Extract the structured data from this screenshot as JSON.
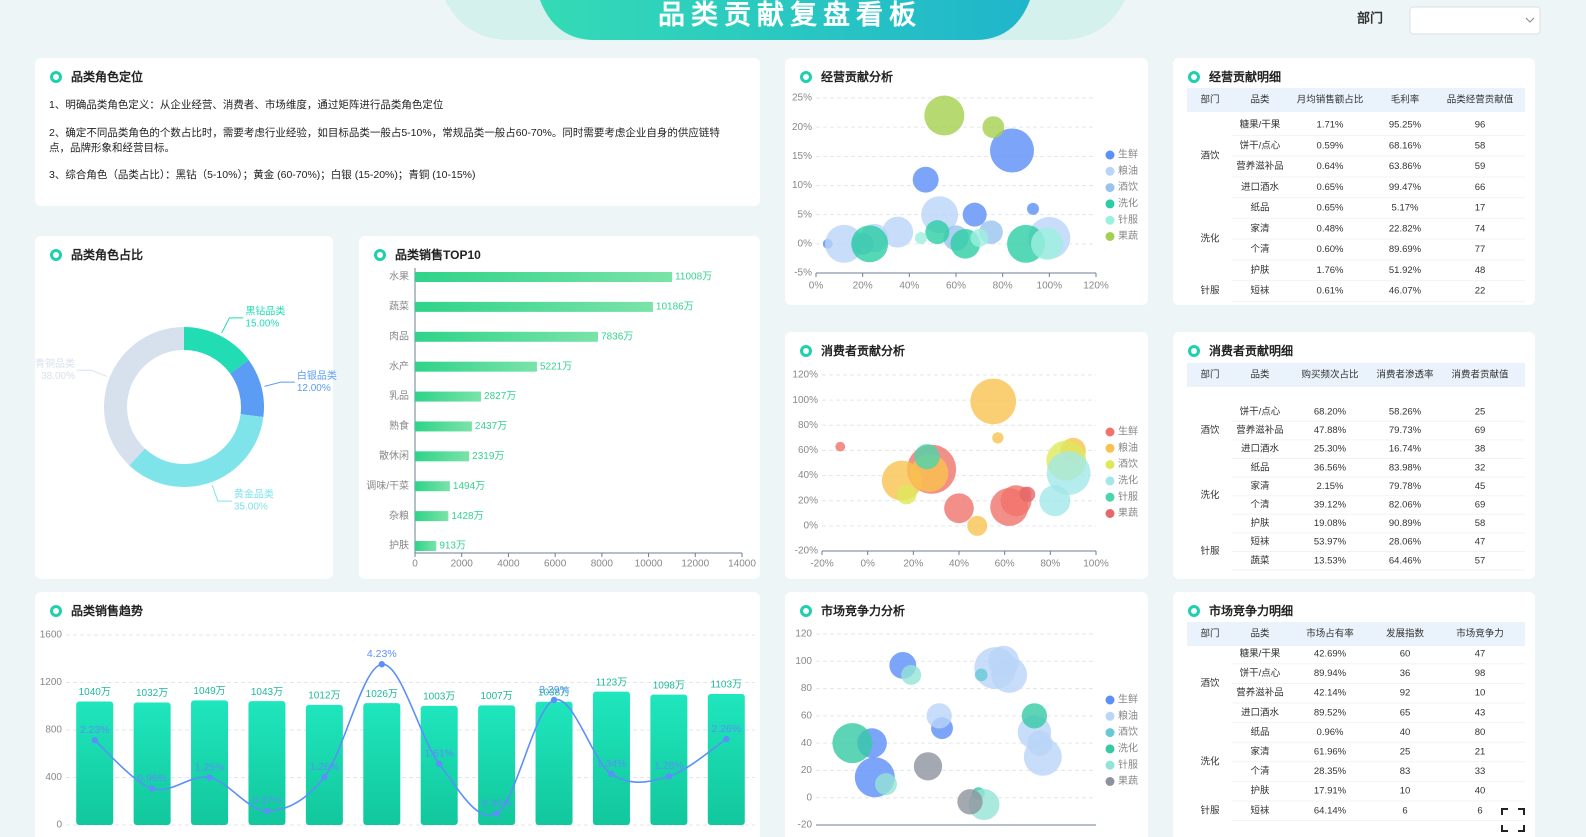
{
  "header": {
    "title": "品类贡献复盘看板",
    "filter_label": "部门"
  },
  "intro": {
    "title": "品类角色定位",
    "lines": [
      "1、明确品类角色定义：从企业经营、消费者、市场维度，通过矩阵进行品类角色定位",
      "2、确定不同品类角色的个数占比时，需要考虑行业经验，如目标品类一般占5-10%，常规品类一般占60-70%。同时需要考虑企业自身的供应链特点，品牌形象和经营目标。",
      "3、综合角色（品类占比）：黑钻（5-10%）；黄金 (60-70%)；白银 (15-20%)；青铜 (10-15%)"
    ]
  },
  "chart_data": [
    {
      "type": "pie",
      "title": "品类角色占比",
      "categories": [
        "黑钻品类",
        "白银品类",
        "黄金品类",
        "青铜品类"
      ],
      "values": [
        15,
        12,
        35,
        38
      ],
      "value_labels": [
        "15.00%",
        "12.00%",
        "35.00%",
        "38.00%"
      ],
      "colors": [
        "#22dcb4",
        "#5b9cf5",
        "#7fe3ea",
        "#d7e1ee"
      ]
    },
    {
      "type": "hbar",
      "title": "品类销售TOP10",
      "categories": [
        "水果",
        "蔬菜",
        "肉品",
        "水产",
        "乳品",
        "熟食",
        "散休闲",
        "调味/干菜",
        "杂粮",
        "护肤"
      ],
      "values": [
        11008,
        10186,
        7836,
        5221,
        2827,
        2437,
        2319,
        1494,
        1428,
        913
      ],
      "value_labels": [
        "11008万",
        "10186万",
        "7836万",
        "5221万",
        "2827万",
        "2437万",
        "2319万",
        "1494万",
        "1428万",
        "913万"
      ],
      "color": "#35d38e",
      "xlim": [
        0,
        14000
      ],
      "xticks": [
        0,
        2000,
        4000,
        6000,
        8000,
        10000,
        12000,
        14000
      ]
    },
    {
      "type": "combo",
      "title": "品类销售趋势",
      "ylim": [
        0,
        1600
      ],
      "yticks": [
        0,
        400,
        800,
        1200,
        1600
      ],
      "y2lim": [
        0,
        5
      ],
      "grid": true,
      "series": [
        {
          "kind": "bar",
          "color": "#19d8b2",
          "values": [
            1040,
            1032,
            1049,
            1043,
            1012,
            1026,
            1003,
            1007,
            1038,
            1123,
            1098,
            1103
          ],
          "value_labels": [
            "1040万",
            "1032万",
            "1049万",
            "1043万",
            "1012万",
            "1026万",
            "1003万",
            "1007万",
            "1038万",
            "1123万",
            "1098万",
            "1103万"
          ]
        },
        {
          "kind": "line",
          "axis": "y2",
          "color": "#5b8ff9",
          "values": [
            2.23,
            0.96,
            1.25,
            0.37,
            1.26,
            4.23,
            1.61,
            0.3,
            3.29,
            1.34,
            1.28,
            2.26
          ],
          "value_labels": [
            "2.23%",
            "0.96%",
            "1.25%",
            "0.37%",
            "1.26%",
            "4.23%",
            "1.61%",
            "0.30%",
            "3.29%",
            "1.34%",
            "1.28%",
            "2.26%"
          ]
        }
      ]
    },
    {
      "type": "bubble",
      "title": "经营贡献分析",
      "grid": true,
      "xlim": [
        0,
        120
      ],
      "xticks": [
        {
          "value": 0,
          "label": "0%"
        },
        {
          "value": 20,
          "label": "20%"
        },
        {
          "value": 40,
          "label": "40%"
        },
        {
          "value": 60,
          "label": "60%"
        },
        {
          "value": 80,
          "label": "80%"
        },
        {
          "value": 100,
          "label": "100%"
        },
        {
          "value": 120,
          "label": "120%"
        }
      ],
      "ylim": [
        -5,
        25
      ],
      "yticks": [
        {
          "value": -5,
          "label": "-5%"
        },
        {
          "value": 0,
          "label": "0%"
        },
        {
          "value": 5,
          "label": "5%"
        },
        {
          "value": 10,
          "label": "10%"
        },
        {
          "value": 15,
          "label": "15%"
        },
        {
          "value": 20,
          "label": "20%"
        },
        {
          "value": 25,
          "label": "25%"
        }
      ],
      "series": [
        {
          "name": "生鲜",
          "color": "#5b8ff9",
          "x": [
            84,
            47,
            68,
            93,
            5
          ],
          "y": [
            16,
            11,
            5,
            6,
            0
          ],
          "size": [
            121,
            42,
            36,
            9,
            6
          ]
        },
        {
          "name": "粮油",
          "color": "#b9d5f7",
          "x": [
            12,
            35,
            53,
            100,
            25
          ],
          "y": [
            0,
            2,
            5,
            1,
            1
          ],
          "size": [
            90,
            60,
            85,
            110,
            50
          ]
        },
        {
          "name": "酒饮",
          "color": "#98c3ee",
          "x": [
            60,
            20,
            75
          ],
          "y": [
            1,
            0,
            2
          ],
          "size": [
            40,
            30,
            35
          ]
        },
        {
          "name": "洗化",
          "color": "#2ccda4",
          "x": [
            23,
            52,
            90,
            64
          ],
          "y": [
            0,
            2,
            0,
            0
          ],
          "size": [
            85,
            36,
            90,
            55
          ]
        },
        {
          "name": "针服",
          "color": "#9cf0e0",
          "x": [
            45,
            99,
            70
          ],
          "y": [
            1,
            0,
            1
          ],
          "size": [
            9,
            64,
            20
          ]
        },
        {
          "name": "果蔬",
          "color": "#a4cf4f",
          "x": [
            55,
            76
          ],
          "y": [
            22,
            20
          ],
          "size": [
            100,
            30
          ]
        }
      ]
    },
    {
      "type": "bubble",
      "title": "消费者贡献分析",
      "grid": true,
      "xlim": [
        -20,
        100
      ],
      "xticks": [
        {
          "value": -20,
          "label": "-20%"
        },
        {
          "value": 0,
          "label": "0%"
        },
        {
          "value": 20,
          "label": "20%"
        },
        {
          "value": 40,
          "label": "40%"
        },
        {
          "value": 60,
          "label": "60%"
        },
        {
          "value": 80,
          "label": "80%"
        },
        {
          "value": 100,
          "label": "100%"
        }
      ],
      "ylim": [
        -20,
        120
      ],
      "yticks": [
        {
          "value": -20,
          "label": "-20%"
        },
        {
          "value": 0,
          "label": "0%"
        },
        {
          "value": 20,
          "label": "20%"
        },
        {
          "value": 40,
          "label": "40%"
        },
        {
          "value": 60,
          "label": "60%"
        },
        {
          "value": 80,
          "label": "80%"
        },
        {
          "value": 100,
          "label": "100%"
        },
        {
          "value": 120,
          "label": "120%"
        }
      ],
      "series": [
        {
          "name": "生鲜",
          "color": "#f0736c",
          "x": [
            28,
            40,
            62,
            65,
            -12,
            69
          ],
          "y": [
            45,
            14,
            15,
            20,
            63,
            26
          ],
          "size": [
            150,
            55,
            90,
            60,
            6,
            10
          ]
        },
        {
          "name": "粮油",
          "color": "#f9c24f",
          "x": [
            15,
            55,
            90,
            48,
            27,
            57
          ],
          "y": [
            36,
            99,
            60,
            0,
            42,
            70
          ],
          "size": [
            100,
            130,
            40,
            25,
            90,
            8
          ]
        },
        {
          "name": "酒饮",
          "color": "#dfe85a",
          "x": [
            87,
            17
          ],
          "y": [
            52,
            25
          ],
          "size": [
            100,
            25
          ]
        },
        {
          "name": "洗化",
          "color": "#a3e7e9",
          "x": [
            88,
            82
          ],
          "y": [
            42,
            20
          ],
          "size": [
            120,
            60
          ]
        },
        {
          "name": "针服",
          "color": "#4bd4ad",
          "x": [
            26
          ],
          "y": [
            55
          ],
          "size": [
            40
          ]
        },
        {
          "name": "果蔬",
          "color": "#e6686a",
          "x": [
            70
          ],
          "y": [
            25
          ],
          "size": [
            15
          ]
        }
      ]
    },
    {
      "type": "bubble",
      "title": "市场竞争力分析",
      "grid": true,
      "xlim": [
        0,
        100
      ],
      "ylim": [
        -20,
        120
      ],
      "yticks": [
        -20,
        0,
        20,
        40,
        60,
        80,
        100,
        120
      ],
      "series": [
        {
          "name": "生鲜",
          "color": "#5b8ff9",
          "x": [
            31,
            45,
            21,
            20
          ],
          "y": [
            97,
            51,
            15,
            40
          ],
          "size": [
            45,
            30,
            100,
            55
          ]
        },
        {
          "name": "粮油",
          "color": "#b9d5f7",
          "x": [
            64,
            69,
            67,
            81,
            78,
            80,
            44
          ],
          "y": [
            95,
            90,
            100,
            30,
            48,
            40,
            60
          ],
          "size": [
            110,
            80,
            60,
            90,
            70,
            40,
            40
          ]
        },
        {
          "name": "酒饮",
          "color": "#67c9d6",
          "x": [
            59
          ],
          "y": [
            90
          ],
          "size": [
            10
          ]
        },
        {
          "name": "洗化",
          "color": "#36c9a4",
          "x": [
            13,
            78,
            58
          ],
          "y": [
            40,
            60,
            3
          ],
          "size": [
            100,
            40,
            10
          ]
        },
        {
          "name": "针服",
          "color": "#94e4d6",
          "x": [
            34,
            60,
            25
          ],
          "y": [
            90,
            -5,
            10
          ],
          "size": [
            25,
            60,
            30
          ]
        },
        {
          "name": "果蔬",
          "color": "#8d929e",
          "x": [
            40,
            55
          ],
          "y": [
            23,
            -3
          ],
          "size": [
            50,
            40
          ]
        }
      ]
    }
  ],
  "tables": [
    {
      "title": "经营贡献明细",
      "headers": [
        "部门",
        "品类",
        "月均销售额占比",
        "毛利率",
        "品类经营贡献值"
      ],
      "groups": [
        {
          "dept": "酒饮",
          "rows": [
            [
              "糖果/干果",
              "1.71%",
              "95.25%",
              "96"
            ],
            [
              "饼干/点心",
              "0.59%",
              "68.16%",
              "58"
            ],
            [
              "营养滋补品",
              "0.64%",
              "63.86%",
              "59"
            ],
            [
              "进口酒水",
              "0.65%",
              "99.47%",
              "66"
            ]
          ]
        },
        {
          "dept": "洗化",
          "rows": [
            [
              "纸品",
              "0.65%",
              "5.17%",
              "17"
            ],
            [
              "家清",
              "0.48%",
              "22.82%",
              "74"
            ],
            [
              "个清",
              "0.60%",
              "89.69%",
              "77"
            ],
            [
              "护肤",
              "1.76%",
              "51.92%",
              "48"
            ]
          ]
        },
        {
          "dept": "针服",
          "rows": [
            [
              "短袜",
              "0.61%",
              "46.07%",
              "22"
            ]
          ]
        }
      ]
    },
    {
      "title": "消费者贡献明细",
      "headers": [
        "部门",
        "品类",
        "购买频次占比",
        "消费者渗透率",
        "消费者贡献值"
      ],
      "groups": [
        {
          "dept": "酒饮",
          "rows": [
            [
              "饼干/点心",
              "68.20%",
              "58.26%",
              "25"
            ],
            [
              "营养滋补品",
              "47.88%",
              "79.73%",
              "69"
            ],
            [
              "进口酒水",
              "25.30%",
              "16.74%",
              "38"
            ]
          ]
        },
        {
          "dept": "洗化",
          "rows": [
            [
              "纸品",
              "36.56%",
              "83.98%",
              "32"
            ],
            [
              "家清",
              "2.15%",
              "79.78%",
              "45"
            ],
            [
              "个清",
              "39.12%",
              "82.06%",
              "69"
            ],
            [
              "护肤",
              "19.08%",
              "90.89%",
              "58"
            ]
          ]
        },
        {
          "dept": "针服",
          "rows": [
            [
              "短袜",
              "53.97%",
              "28.06%",
              "47"
            ],
            [
              "蔬菜",
              "13.53%",
              "64.46%",
              "57"
            ]
          ]
        }
      ]
    },
    {
      "title": "市场竞争力明细",
      "headers": [
        "部门",
        "品类",
        "市场占有率",
        "发展指数",
        "市场竞争力"
      ],
      "groups": [
        {
          "dept": "酒饮",
          "rows": [
            [
              "糖果/干果",
              "42.69%",
              "60",
              "47"
            ],
            [
              "饼干/点心",
              "89.94%",
              "36",
              "98"
            ],
            [
              "营养滋补品",
              "42.14%",
              "92",
              "10"
            ],
            [
              "进口酒水",
              "89.52%",
              "65",
              "43"
            ]
          ]
        },
        {
          "dept": "洗化",
          "rows": [
            [
              "纸品",
              "0.96%",
              "40",
              "80"
            ],
            [
              "家清",
              "61.96%",
              "25",
              "21"
            ],
            [
              "个清",
              "28.35%",
              "83",
              "33"
            ],
            [
              "护肤",
              "17.91%",
              "10",
              "40"
            ]
          ]
        },
        {
          "dept": "针服",
          "rows": [
            [
              "短袜",
              "64.14%",
              "6",
              "6"
            ]
          ]
        }
      ]
    }
  ]
}
